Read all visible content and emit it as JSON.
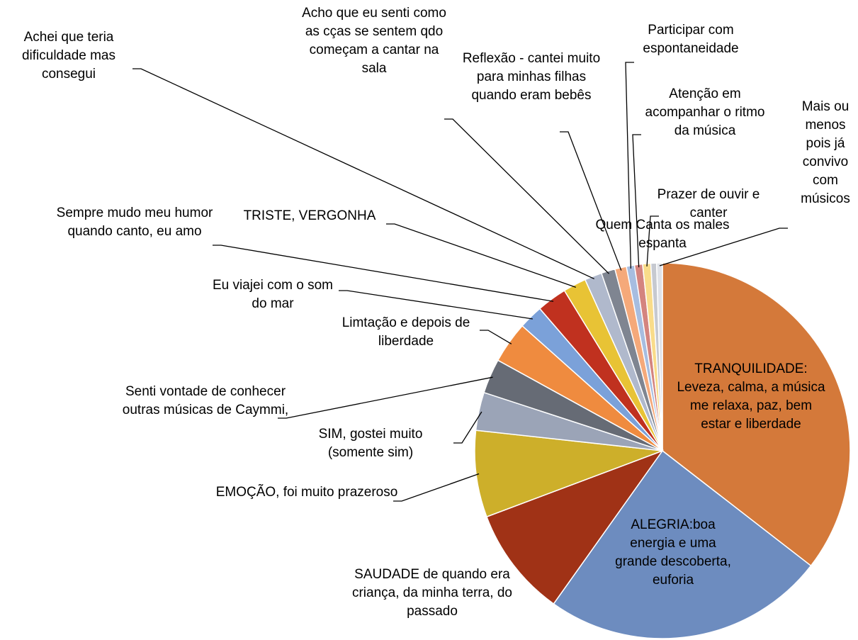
{
  "chart_data": {
    "type": "pie",
    "categories": [
      "TRANQUILIDADE: Leveza, calma, a música me relaxa, paz, bem estar e liberdade",
      "ALEGRIA:boa energia e uma grande descoberta, euforia",
      "SAUDADE de quando era criança, da minha terra, do passado",
      "EMOÇÃO, foi muito prazeroso",
      "SIM, gostei muito (somente sim)",
      "Senti vontade de conhecer outras músicas de Caymmi,",
      "Limtação e depois de liberdade",
      "Eu viajei com o som do mar",
      "Sempre mudo meu humor quando canto, eu amo",
      "TRISTE, VERGONHA",
      "Achei que teria dificuldade mas consegui",
      "Acho que eu senti como as cças se sentem qdo começam a cantar na sala",
      "Reflexão - cantei muito para minhas filhas quando eram bebês",
      "Participar com espontaneidade",
      "Atenção em acompanhar o ritmo da música",
      "Prazer de ouvir e canter",
      "Quem Canta os males espanta",
      "Mais ou menos pois já convivo com músicos"
    ],
    "values": [
      35.7,
      24.5,
      9.5,
      7.5,
      3.3,
      3.0,
      3.6,
      2.1,
      2.6,
      2.0,
      1.5,
      1.2,
      1.0,
      0.7,
      0.7,
      0.7,
      0.5,
      0.5
    ],
    "colors": [
      "#d4793a",
      "#6d8cbf",
      "#a03216",
      "#cdaf2a",
      "#9ba4b7",
      "#666b75",
      "#ef8b3f",
      "#7ba1d9",
      "#c0311f",
      "#e8c335",
      "#b0b9cc",
      "#7f8591",
      "#f5a97a",
      "#a7bde0",
      "#d4847f",
      "#f9dc8a",
      "#c6c9d0",
      "#dfe2e8"
    ]
  }
}
